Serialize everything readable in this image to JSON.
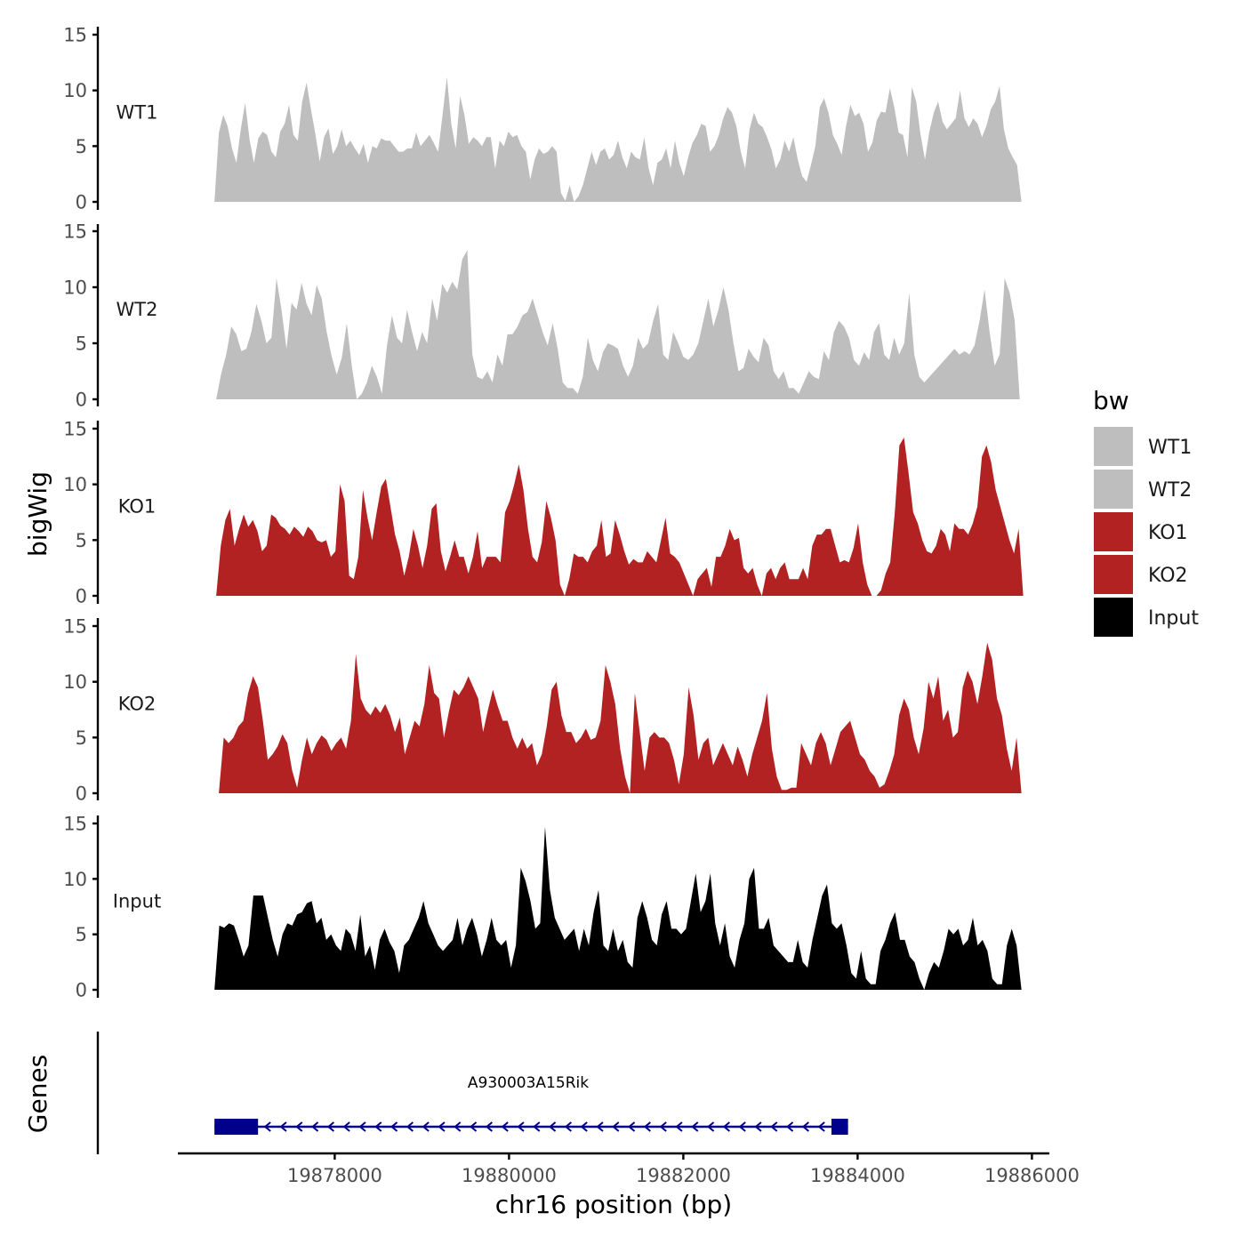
{
  "chart_data": {
    "type": "area",
    "title": "",
    "xlabel": "chr16 position (bp)",
    "ylabel": "bigWig",
    "genes_label": "Genes",
    "xlim": [
      19876200,
      19886200
    ],
    "x_ticks": [
      19878000,
      19880000,
      19882000,
      19884000,
      19886000
    ],
    "x_tick_labels": [
      "19878000",
      "19880000",
      "19882000",
      "19884000",
      "19886000"
    ],
    "ylim": [
      0,
      15
    ],
    "y_ticks": [
      0,
      5,
      10,
      15
    ],
    "y_tick_labels": [
      "0",
      "5",
      "10",
      "15"
    ],
    "legend": {
      "title": "bw",
      "position": "right",
      "entries": [
        {
          "label": "WT1",
          "color": "#bebebe"
        },
        {
          "label": "WT2",
          "color": "#bebebe"
        },
        {
          "label": "KO1",
          "color": "#b22222"
        },
        {
          "label": "KO2",
          "color": "#b22222"
        },
        {
          "label": "Input",
          "color": "#000000"
        }
      ]
    },
    "series": [
      {
        "name": "WT1",
        "color": "#bebebe",
        "x_start": 19876620,
        "x_end": 19885880,
        "values": [
          0,
          6.2,
          7.8,
          6.8,
          4.8,
          3.5,
          6.5,
          8.9,
          5.6,
          3.5,
          5.7,
          6.3,
          6.0,
          4.5,
          4.0,
          6.3,
          7.0,
          8.7,
          6.0,
          5.5,
          9.0,
          10.7,
          8.3,
          6.1,
          3.6,
          5.8,
          6.6,
          4.3,
          5.0,
          6.5,
          5.0,
          5.5,
          4.8,
          4.2,
          5.2,
          3.5,
          5.0,
          4.8,
          5.7,
          5.5,
          5.5,
          5.0,
          4.5,
          4.5,
          4.8,
          4.8,
          6.2,
          5.0,
          5.5,
          6.0,
          5.3,
          4.5,
          7.8,
          11.2,
          7.0,
          4.8,
          9.5,
          7.8,
          5.2,
          5.8,
          5.5,
          5.0,
          5.8,
          5.8,
          3.0,
          5.5,
          5.0,
          6.3,
          5.8,
          6.0,
          5.0,
          4.5,
          2.0,
          3.8,
          4.8,
          4.3,
          4.5,
          5.0,
          4.5,
          0.8,
          0.1,
          1.5,
          0,
          0.5,
          1.5,
          3.0,
          4.5,
          3.3,
          4.5,
          4.8,
          3.8,
          4.2,
          5.5,
          4.0,
          3.0,
          4.5,
          4.0,
          3.8,
          5.8,
          3.0,
          1.5,
          3.5,
          3.8,
          4.8,
          3.0,
          5.5,
          3.5,
          2.3,
          4.0,
          5.3,
          6.0,
          7.0,
          6.8,
          4.5,
          5.0,
          6.0,
          7.5,
          8.5,
          8.0,
          6.8,
          4.5,
          3.0,
          6.5,
          8.0,
          7.0,
          6.7,
          5.8,
          4.7,
          3.0,
          3.8,
          5.5,
          4.5,
          5.8,
          3.8,
          2.3,
          1.8,
          3.3,
          5.0,
          8.5,
          9.3,
          8.0,
          6.0,
          5.2,
          4.2,
          6.8,
          8.7,
          7.7,
          8.0,
          7.0,
          4.5,
          5.3,
          7.3,
          8.1,
          8.0,
          10.2,
          8.5,
          6.2,
          6.0,
          4.0,
          10.3,
          9.0,
          6.0,
          3.8,
          6.3,
          8.0,
          9.0,
          7.2,
          6.5,
          7.0,
          7.5,
          10.0,
          7.5,
          6.7,
          7.5,
          7.0,
          5.8,
          6.8,
          8.3,
          9.0,
          10.4,
          6.5,
          4.8,
          4.0,
          3.3,
          0
        ]
      },
      {
        "name": "WT2",
        "color": "#bebebe",
        "x_start": 19876640,
        "x_end": 19885860,
        "values": [
          0,
          2.3,
          4.0,
          6.5,
          5.8,
          4.3,
          4.5,
          6.0,
          8.5,
          7.0,
          5.0,
          5.5,
          10.8,
          8.0,
          4.5,
          8.6,
          8.0,
          10.4,
          8.5,
          7.5,
          10.2,
          9.0,
          6.0,
          3.8,
          2.2,
          3.7,
          6.8,
          3.0,
          0,
          0.5,
          1.5,
          3.0,
          2.0,
          0.5,
          4.8,
          7.5,
          5.5,
          5.0,
          8.0,
          6.0,
          4.3,
          6.0,
          5.0,
          9.0,
          7.0,
          10.3,
          9.5,
          10.5,
          9.8,
          12.5,
          13.3,
          4.0,
          2.0,
          1.8,
          2.5,
          1.5,
          4.0,
          3.0,
          5.8,
          5.8,
          6.5,
          7.5,
          7.8,
          9.0,
          7.5,
          6.0,
          4.8,
          6.8,
          4.5,
          1.5,
          1.0,
          1.0,
          0.5,
          2.0,
          5.5,
          3.5,
          2.5,
          4.2,
          5.0,
          4.8,
          4.5,
          3.0,
          2.0,
          3.0,
          5.5,
          4.5,
          5.0,
          7.0,
          8.5,
          4.0,
          3.5,
          6.0,
          5.0,
          3.8,
          3.5,
          4.0,
          5.0,
          7.0,
          9.0,
          6.5,
          8.0,
          10.0,
          8.0,
          5.0,
          2.5,
          2.8,
          4.5,
          3.8,
          3.3,
          5.5,
          4.8,
          2.5,
          1.8,
          2.5,
          1.0,
          1.0,
          0.5,
          1.5,
          2.5,
          2.0,
          1.8,
          4.3,
          3.5,
          6.0,
          7.0,
          6.5,
          5.5,
          3.5,
          3.0,
          4.2,
          3.5,
          6.0,
          6.8,
          4.0,
          3.5,
          5.5,
          4.0,
          5.0,
          9.5,
          4.0,
          2.0,
          1.5,
          2.0,
          2.5,
          3.0,
          3.5,
          4.0,
          4.5,
          4.0,
          4.3,
          4.0,
          4.8,
          7.0,
          9.8,
          6.0,
          3.0,
          4.0,
          10.8,
          9.5,
          7.0,
          0
        ]
      },
      {
        "name": "KO1",
        "color": "#b22222",
        "x_start": 19876640,
        "x_end": 19885900,
        "values": [
          0,
          4.5,
          6.8,
          7.8,
          4.5,
          6.0,
          7.3,
          6.2,
          6.8,
          5.8,
          4.0,
          4.5,
          7.3,
          7.0,
          6.3,
          6.0,
          5.5,
          6.2,
          5.8,
          5.3,
          6.2,
          5.8,
          5.0,
          4.8,
          5.0,
          3.5,
          4.0,
          10.0,
          8.5,
          1.8,
          1.5,
          3.5,
          9.5,
          7.0,
          5.0,
          7.5,
          9.8,
          10.5,
          8.0,
          5.5,
          4.0,
          1.8,
          3.5,
          6.0,
          4.5,
          2.5,
          4.5,
          7.8,
          8.3,
          4.0,
          2.2,
          3.5,
          5.0,
          3.5,
          3.5,
          2.0,
          3.5,
          5.8,
          2.5,
          3.5,
          3.5,
          3.5,
          3.0,
          7.5,
          8.5,
          10.0,
          11.8,
          9.5,
          6.0,
          3.5,
          3.0,
          4.8,
          8.5,
          7.0,
          5.0,
          1.0,
          0,
          1.5,
          3.8,
          3.5,
          3.5,
          3.0,
          4.0,
          4.5,
          6.8,
          3.5,
          3.8,
          6.8,
          5.5,
          4.0,
          2.8,
          3.3,
          3.0,
          3.0,
          4.0,
          3.5,
          3.0,
          5.0,
          7.0,
          3.8,
          3.5,
          3.0,
          2.0,
          1.0,
          0,
          1.5,
          2.0,
          2.5,
          0.8,
          3.5,
          3.5,
          4.5,
          6.0,
          5.0,
          5.2,
          2.5,
          2.0,
          2.5,
          1.0,
          0,
          2.0,
          2.5,
          1.5,
          2.5,
          3.0,
          1.5,
          1.5,
          1.5,
          2.5,
          1.5,
          4.5,
          5.5,
          5.5,
          6.0,
          6.0,
          4.5,
          3.0,
          3.2,
          3.0,
          4.3,
          6.5,
          3.0,
          1.0,
          0,
          0,
          0.5,
          2.0,
          3.0,
          7.5,
          13.5,
          14.2,
          11.0,
          7.5,
          6.5,
          5.0,
          4.0,
          3.8,
          4.5,
          6.0,
          5.5,
          4.0,
          6.5,
          6.0,
          6.0,
          5.5,
          6.5,
          8.0,
          12.5,
          13.5,
          12.0,
          9.5,
          8.0,
          6.5,
          5.0,
          3.8,
          6.0,
          0
        ]
      },
      {
        "name": "KO2",
        "color": "#b22222",
        "x_start": 19876670,
        "x_end": 19885880,
        "values": [
          0,
          5.0,
          4.5,
          5.0,
          6.0,
          6.5,
          9.0,
          10.5,
          9.5,
          6.5,
          3.0,
          3.5,
          4.2,
          5.3,
          4.5,
          2.0,
          0.5,
          3.0,
          5.0,
          3.5,
          4.5,
          5.2,
          4.8,
          3.8,
          4.5,
          5.0,
          4.0,
          6.5,
          12.5,
          8.5,
          7.5,
          7.0,
          7.8,
          7.2,
          8.0,
          7.0,
          5.5,
          6.8,
          3.5,
          5.0,
          6.5,
          6.0,
          8.0,
          11.5,
          9.0,
          8.5,
          5.0,
          7.3,
          9.3,
          8.8,
          9.5,
          10.5,
          9.5,
          8.5,
          5.5,
          7.5,
          9.3,
          7.8,
          6.5,
          6.5,
          5.0,
          4.0,
          5.0,
          4.0,
          4.5,
          2.5,
          3.5,
          6.0,
          9.3,
          10.0,
          7.0,
          5.5,
          5.5,
          4.5,
          5.0,
          5.8,
          4.8,
          5.0,
          6.5,
          11.5,
          10.0,
          8.0,
          4.0,
          1.5,
          0,
          9.0,
          5.5,
          2.0,
          5.0,
          5.5,
          5.0,
          5.0,
          4.5,
          3.0,
          0.8,
          3.5,
          9.5,
          7.0,
          3.0,
          4.5,
          5.0,
          2.5,
          3.5,
          4.5,
          3.5,
          2.5,
          4.2,
          3.0,
          1.5,
          3.5,
          5.0,
          6.5,
          9.0,
          4.0,
          1.5,
          0.3,
          0.3,
          0.5,
          0.5,
          4.5,
          3.5,
          2.5,
          4.5,
          5.5,
          4.5,
          2.5,
          4.0,
          5.5,
          6.0,
          6.5,
          5.0,
          3.5,
          3.0,
          2.0,
          1.5,
          0.5,
          0.8,
          2.0,
          3.5,
          7.0,
          8.5,
          7.5,
          5.0,
          3.5,
          5.8,
          10.0,
          8.5,
          10.5,
          6.5,
          7.5,
          5.0,
          5.5,
          9.5,
          11.0,
          10.0,
          8.0,
          10.5,
          13.5,
          12.0,
          8.5,
          7.0,
          4.0,
          2.0,
          5.0,
          0
        ]
      },
      {
        "name": "Input",
        "color": "#000000",
        "x_start": 19876620,
        "x_end": 19885880,
        "values": [
          0,
          5.8,
          5.6,
          6.0,
          5.8,
          4.5,
          3.0,
          4.0,
          8.5,
          8.5,
          8.5,
          6.5,
          4.5,
          3.0,
          5.0,
          6.0,
          5.8,
          6.8,
          7.0,
          7.8,
          8.0,
          6.0,
          6.5,
          4.5,
          5.0,
          4.0,
          3.5,
          5.5,
          5.0,
          3.5,
          6.8,
          3.0,
          4.0,
          1.8,
          4.5,
          5.5,
          4.3,
          3.5,
          1.5,
          4.0,
          4.5,
          5.5,
          6.5,
          8.0,
          6.0,
          5.0,
          4.0,
          3.5,
          4.0,
          4.5,
          6.5,
          4.0,
          5.5,
          6.5,
          5.0,
          3.0,
          4.5,
          6.5,
          4.5,
          4.0,
          4.5,
          2.0,
          4.0,
          11.0,
          9.8,
          8.0,
          5.5,
          6.0,
          14.7,
          9.0,
          6.5,
          5.5,
          4.5,
          5.0,
          5.5,
          3.5,
          5.5,
          4.0,
          7.0,
          9.0,
          4.0,
          3.5,
          5.5,
          3.5,
          4.5,
          2.5,
          2.0,
          6.5,
          8.0,
          6.5,
          4.5,
          4.0,
          6.8,
          8.0,
          5.5,
          5.5,
          5.0,
          5.5,
          8.0,
          10.5,
          7.0,
          8.0,
          10.5,
          6.0,
          4.0,
          6.0,
          3.0,
          2.0,
          4.5,
          6.0,
          10.0,
          11.0,
          5.5,
          5.5,
          6.5,
          4.0,
          3.5,
          3.0,
          2.5,
          2.5,
          4.5,
          2.5,
          2.0,
          4.5,
          6.5,
          8.5,
          9.5,
          6.0,
          5.5,
          6.0,
          4.0,
          1.5,
          1.0,
          3.5,
          1.0,
          0.5,
          0.5,
          3.5,
          4.5,
          6.0,
          7.0,
          4.5,
          4.5,
          3.0,
          2.5,
          1.0,
          0,
          1.5,
          2.5,
          2.0,
          3.5,
          5.5,
          5.0,
          5.5,
          4.0,
          4.5,
          6.5,
          4.0,
          4.5,
          3.5,
          1.0,
          0.5,
          0.5,
          4.0,
          5.5,
          4.0,
          0
        ]
      }
    ],
    "genes": [
      {
        "name": "A930003A15Rik",
        "strand": "-",
        "start": 19876620,
        "end": 19883890,
        "exons": [
          [
            19876620,
            19877120
          ],
          [
            19883700,
            19883890
          ]
        ],
        "color": "#00008b"
      }
    ]
  }
}
